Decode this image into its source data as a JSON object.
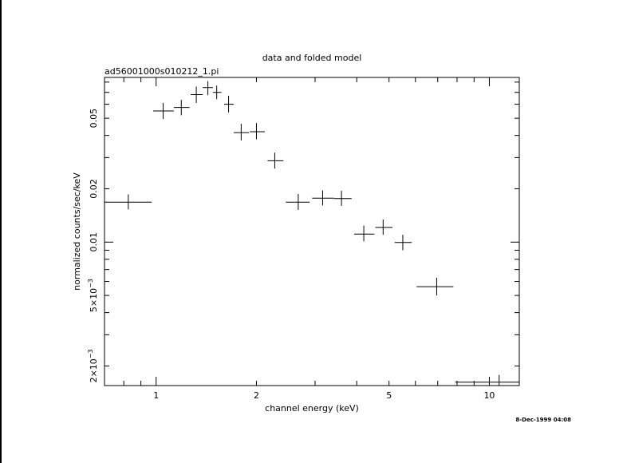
{
  "chart_data": {
    "type": "scatter",
    "title": "data and folded model",
    "subtitle": "ad56001000s010212_1.pi",
    "xlabel": "channel energy (keV)",
    "ylabel": "normalized counts/sec/keV",
    "x_scale": "log",
    "y_scale": "log",
    "xlim": [
      0.7,
      12.3
    ],
    "ylim": [
      0.00155,
      0.085
    ],
    "x_ticks": [
      {
        "value": 1,
        "label": "1"
      },
      {
        "value": 2,
        "label": "2"
      },
      {
        "value": 5,
        "label": "5"
      },
      {
        "value": 10,
        "label": "10"
      }
    ],
    "y_ticks": [
      {
        "value": 0.002,
        "base": "2×10",
        "exp": "−3"
      },
      {
        "value": 0.005,
        "base": "5×10",
        "exp": "−3"
      },
      {
        "value": 0.01,
        "label": "0.01"
      },
      {
        "value": 0.02,
        "label": "0.02"
      },
      {
        "value": 0.05,
        "label": "0.05"
      }
    ],
    "grid": false,
    "points": [
      {
        "x": 0.825,
        "x_lo": 0.7,
        "x_hi": 0.97,
        "y": 0.0168,
        "y_lo": 0.0153,
        "y_hi": 0.0186
      },
      {
        "x": 1.05,
        "x_lo": 0.98,
        "x_hi": 1.13,
        "y": 0.055,
        "y_lo": 0.0495,
        "y_hi": 0.061
      },
      {
        "x": 1.19,
        "x_lo": 1.13,
        "x_hi": 1.26,
        "y": 0.0575,
        "y_lo": 0.052,
        "y_hi": 0.0635
      },
      {
        "x": 1.32,
        "x_lo": 1.27,
        "x_hi": 1.38,
        "y": 0.068,
        "y_lo": 0.061,
        "y_hi": 0.0755
      },
      {
        "x": 1.43,
        "x_lo": 1.38,
        "x_hi": 1.48,
        "y": 0.0745,
        "y_lo": 0.0675,
        "y_hi": 0.081
      },
      {
        "x": 1.52,
        "x_lo": 1.48,
        "x_hi": 1.57,
        "y": 0.07,
        "y_lo": 0.064,
        "y_hi": 0.0765
      },
      {
        "x": 1.65,
        "x_lo": 1.6,
        "x_hi": 1.71,
        "y": 0.06,
        "y_lo": 0.054,
        "y_hi": 0.067
      },
      {
        "x": 1.8,
        "x_lo": 1.71,
        "x_hi": 1.9,
        "y": 0.0415,
        "y_lo": 0.0375,
        "y_hi": 0.0465
      },
      {
        "x": 2.0,
        "x_lo": 1.91,
        "x_hi": 2.12,
        "y": 0.042,
        "y_lo": 0.038,
        "y_hi": 0.047
      },
      {
        "x": 2.27,
        "x_lo": 2.16,
        "x_hi": 2.41,
        "y": 0.0288,
        "y_lo": 0.026,
        "y_hi": 0.032
      },
      {
        "x": 2.67,
        "x_lo": 2.45,
        "x_hi": 2.89,
        "y": 0.0168,
        "y_lo": 0.0152,
        "y_hi": 0.0187
      },
      {
        "x": 3.16,
        "x_lo": 2.94,
        "x_hi": 3.42,
        "y": 0.0177,
        "y_lo": 0.0161,
        "y_hi": 0.0196
      },
      {
        "x": 3.6,
        "x_lo": 3.42,
        "x_hi": 3.86,
        "y": 0.0176,
        "y_lo": 0.016,
        "y_hi": 0.0195
      },
      {
        "x": 4.2,
        "x_lo": 3.93,
        "x_hi": 4.52,
        "y": 0.0111,
        "y_lo": 0.0101,
        "y_hi": 0.0124
      },
      {
        "x": 4.8,
        "x_lo": 4.55,
        "x_hi": 5.12,
        "y": 0.0121,
        "y_lo": 0.011,
        "y_hi": 0.0134
      },
      {
        "x": 5.5,
        "x_lo": 5.2,
        "x_hi": 5.85,
        "y": 0.00995,
        "y_lo": 0.009,
        "y_hi": 0.011
      },
      {
        "x": 6.95,
        "x_lo": 6.05,
        "x_hi": 7.8,
        "y": 0.0056,
        "y_lo": 0.005,
        "y_hi": 0.0063
      },
      {
        "x": 10.7,
        "x_lo": 7.9,
        "x_hi": 12.3,
        "y": 0.00162,
        "y_lo": 0.00155,
        "y_hi": 0.00178
      }
    ]
  },
  "footer": {
    "timestamp": "8-Dec-1999 04:08"
  }
}
